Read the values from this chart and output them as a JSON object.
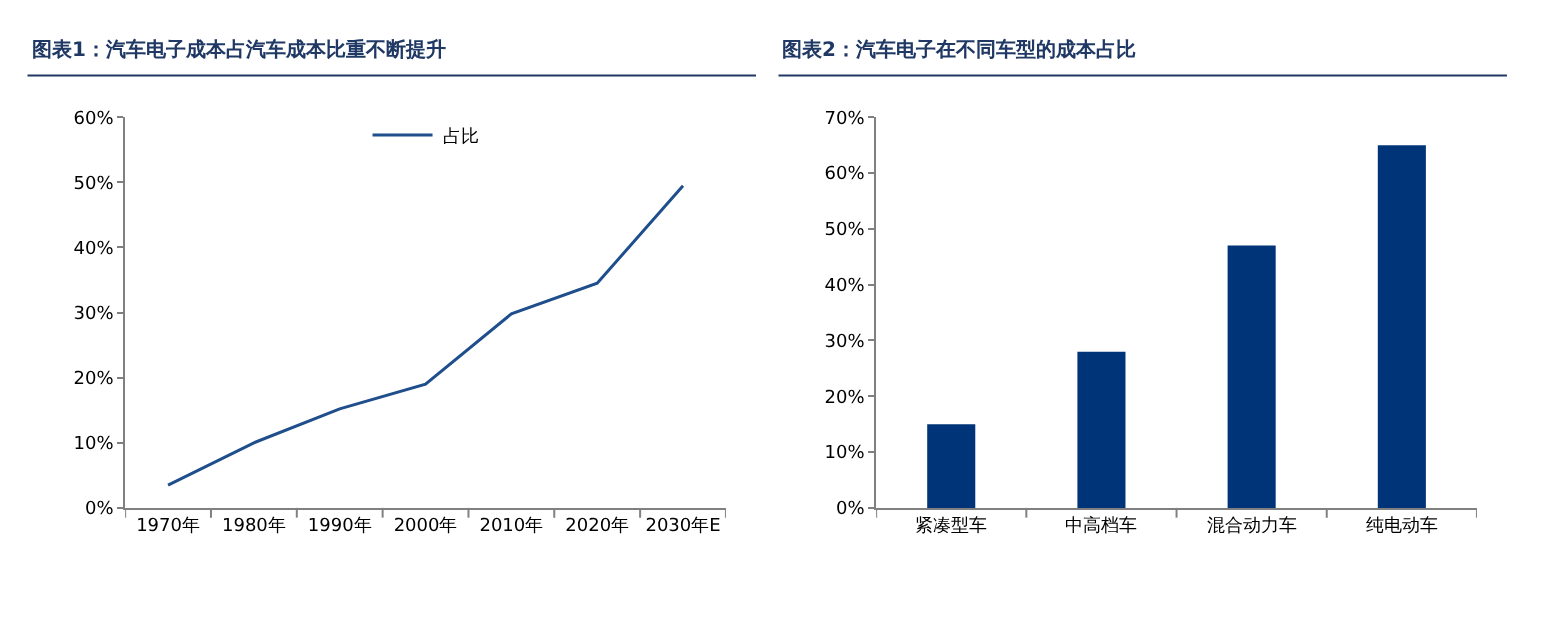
{
  "chart_data": [
    {
      "type": "line",
      "title": "图表1：汽车电子成本占汽车成本比重不断提升",
      "categories": [
        "1970年",
        "1980年",
        "1990年",
        "2000年",
        "2010年",
        "2020年",
        "2030年E"
      ],
      "series": [
        {
          "name": "占比",
          "color": "#1f4e8c",
          "values": [
            3.5,
            10,
            15.2,
            19,
            29.8,
            34.5,
            49.5
          ]
        }
      ],
      "ylim": [
        0,
        60
      ],
      "yticks": [
        {
          "value": 0,
          "label": "0%"
        },
        {
          "value": 10,
          "label": "10%"
        },
        {
          "value": 20,
          "label": "20%"
        },
        {
          "value": 30,
          "label": "30%"
        },
        {
          "value": 40,
          "label": "40%"
        },
        {
          "value": 50,
          "label": "50%"
        },
        {
          "value": 60,
          "label": "60%"
        }
      ],
      "legend": "top",
      "marker": "none",
      "line_style": "solid"
    },
    {
      "type": "bar",
      "title": "图表2：汽车电子在不同车型的成本占比",
      "categories": [
        "紧凑型车",
        "中高档车",
        "混合动力车",
        "纯电动车"
      ],
      "series": [
        {
          "color": "#003478",
          "values": [
            15,
            28,
            47,
            65
          ]
        }
      ],
      "ylim": [
        0,
        70
      ],
      "yticks": [
        {
          "value": 0,
          "label": "0%"
        },
        {
          "value": 10,
          "label": "10%"
        },
        {
          "value": 20,
          "label": "20%"
        },
        {
          "value": 30,
          "label": "30%"
        },
        {
          "value": 40,
          "label": "40%"
        },
        {
          "value": 50,
          "label": "50%"
        },
        {
          "value": 60,
          "label": "60%"
        },
        {
          "value": 70,
          "label": "70%"
        }
      ],
      "legend": false
    }
  ]
}
